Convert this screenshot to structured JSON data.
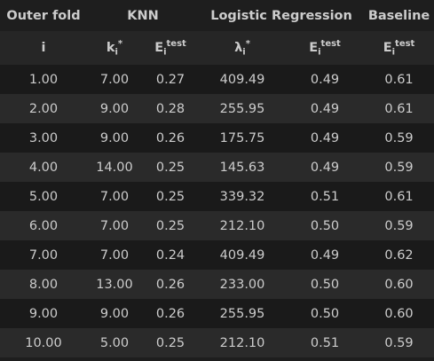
{
  "headers": {
    "group": [
      "Outer fold",
      "KNN",
      "Logistic Regression",
      "Baseline"
    ],
    "symbols": [
      {
        "base": "i",
        "sub": "",
        "sup": ""
      },
      {
        "base": "k",
        "sub": "i",
        "sup": "*"
      },
      {
        "base": "E",
        "sub": "i",
        "sup": "test"
      },
      {
        "base": "λ",
        "sub": "i",
        "sup": "*"
      },
      {
        "base": "E",
        "sub": "i",
        "sup": "test"
      },
      {
        "base": "E",
        "sub": "i",
        "sup": "test"
      }
    ]
  },
  "rows": [
    [
      "1.00",
      "7.00",
      "0.27",
      "409.49",
      "0.49",
      "0.61"
    ],
    [
      "2.00",
      "9.00",
      "0.28",
      "255.95",
      "0.49",
      "0.61"
    ],
    [
      "3.00",
      "9.00",
      "0.26",
      "175.75",
      "0.49",
      "0.59"
    ],
    [
      "4.00",
      "14.00",
      "0.25",
      "145.63",
      "0.49",
      "0.59"
    ],
    [
      "5.00",
      "7.00",
      "0.25",
      "339.32",
      "0.51",
      "0.61"
    ],
    [
      "6.00",
      "7.00",
      "0.25",
      "212.10",
      "0.50",
      "0.59"
    ],
    [
      "7.00",
      "7.00",
      "0.24",
      "409.49",
      "0.49",
      "0.62"
    ],
    [
      "8.00",
      "13.00",
      "0.26",
      "233.00",
      "0.50",
      "0.60"
    ],
    [
      "9.00",
      "9.00",
      "0.26",
      "255.95",
      "0.50",
      "0.60"
    ],
    [
      "10.00",
      "5.00",
      "0.25",
      "212.10",
      "0.51",
      "0.59"
    ]
  ]
}
